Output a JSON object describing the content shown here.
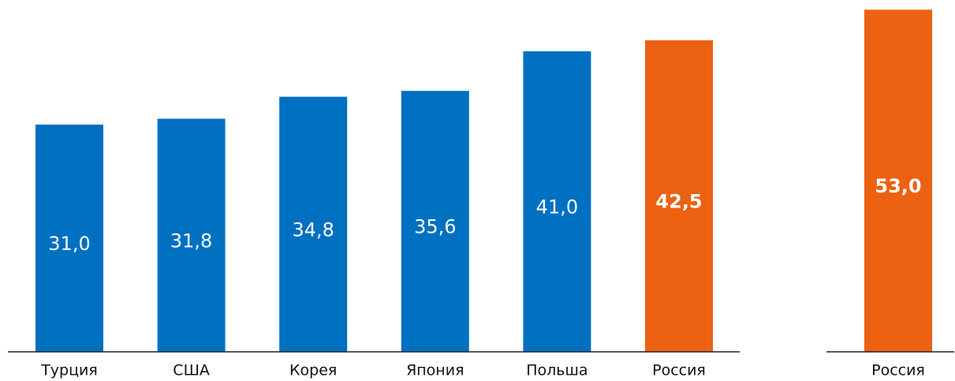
{
  "chart_data": [
    {
      "type": "bar",
      "categories": [
        "Турция",
        "США",
        "Корея",
        "Япония",
        "Польша",
        "Россия"
      ],
      "values": [
        31.0,
        31.8,
        34.8,
        35.6,
        41.0,
        42.5
      ],
      "value_labels": [
        "31,0",
        "31,8",
        "34,8",
        "35,6",
        "41,0",
        "42,5"
      ],
      "colors": [
        "#0070c0",
        "#0070c0",
        "#0070c0",
        "#0070c0",
        "#0070c0",
        "#ec6112"
      ],
      "ylim": [
        0,
        48
      ]
    },
    {
      "type": "bar",
      "categories": [
        "Россия"
      ],
      "values": [
        53.0
      ],
      "value_labels": [
        "53,0"
      ],
      "colors": [
        "#ec6112"
      ],
      "ylim": [
        0,
        54.5
      ]
    }
  ]
}
